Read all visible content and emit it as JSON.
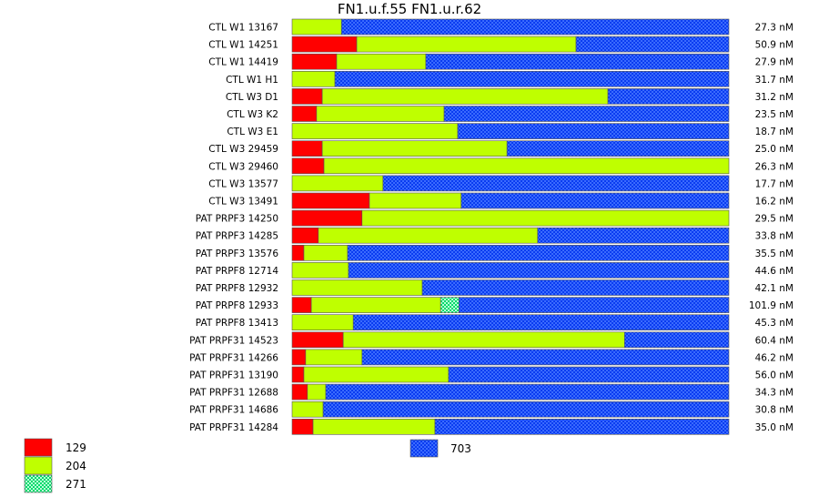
{
  "chart_data": {
    "type": "bar",
    "orientation": "horizontal",
    "stacked": true,
    "normalized": true,
    "title": "FN1.u.f.55  FN1.u.r.62",
    "categories": [
      "CTL W1 13167",
      "CTL W1 14251",
      "CTL W1 14419",
      "CTL W1 H1",
      "CTL W3 D1",
      "CTL W3 K2",
      "CTL W3 E1",
      "CTL W3 29459",
      "CTL W3 29460",
      "CTL W3 13577",
      "CTL W3 13491",
      "PAT PRPF3 14250",
      "PAT PRPF3 14285",
      "PAT PRPF3 13576",
      "PAT PRPF8 12714",
      "PAT PRPF8 12932",
      "PAT PRPF8 12933",
      "PAT PRPF8 13413",
      "PAT PRPF31 14523",
      "PAT PRPF31 14266",
      "PAT PRPF31 13190",
      "PAT PRPF31 12688",
      "PAT PRPF31 14686",
      "PAT PRPF31 14284"
    ],
    "concentrations": [
      "27.3 nM",
      "50.9 nM",
      "27.9 nM",
      "31.7 nM",
      "31.2 nM",
      "23.5 nM",
      "18.7 nM",
      "25.0 nM",
      "26.3 nM",
      "17.7 nM",
      "16.2 nM",
      "29.5 nM",
      "33.8 nM",
      "35.5 nM",
      "44.6 nM",
      "42.1 nM",
      "101.9 nM",
      "45.3 nM",
      "60.4 nM",
      "46.2 nM",
      "56.0 nM",
      "34.3 nM",
      "30.8 nM",
      "35.0 nM"
    ],
    "series": [
      {
        "name": "129",
        "color": "#ff0000",
        "pattern": "solid",
        "values": [
          0.0,
          0.148,
          0.102,
          0.0,
          0.069,
          0.056,
          0.0,
          0.069,
          0.073,
          0.0,
          0.177,
          0.16,
          0.06,
          0.027,
          0.0,
          0.0,
          0.044,
          0.0,
          0.117,
          0.031,
          0.027,
          0.035,
          0.0,
          0.048
        ]
      },
      {
        "name": "204",
        "color": "#bfff00",
        "pattern": "solid",
        "values": [
          0.113,
          0.502,
          0.204,
          0.098,
          0.654,
          0.292,
          0.379,
          0.423,
          0.927,
          0.208,
          0.21,
          0.84,
          0.502,
          0.1,
          0.129,
          0.298,
          0.296,
          0.14,
          0.644,
          0.129,
          0.331,
          0.042,
          0.071,
          0.279
        ]
      },
      {
        "name": "271",
        "color": "#00ff80",
        "pattern": "checker",
        "values": [
          0,
          0,
          0,
          0,
          0,
          0,
          0,
          0,
          0,
          0,
          0,
          0,
          0,
          0,
          0,
          0,
          0.042,
          0,
          0,
          0,
          0,
          0,
          0,
          0
        ]
      },
      {
        "name": "703",
        "color": "#0040ff",
        "pattern": "checker",
        "values": [
          0.887,
          0.35,
          0.694,
          0.902,
          0.277,
          0.652,
          0.621,
          0.508,
          0.0,
          0.792,
          0.613,
          0.0,
          0.438,
          0.873,
          0.871,
          0.702,
          0.618,
          0.86,
          0.239,
          0.84,
          0.642,
          0.923,
          0.929,
          0.673
        ]
      }
    ],
    "legend": {
      "left": [
        "129",
        "204",
        "271"
      ],
      "right": [
        "703"
      ]
    },
    "xlim": [
      0,
      1
    ],
    "grid": false
  }
}
